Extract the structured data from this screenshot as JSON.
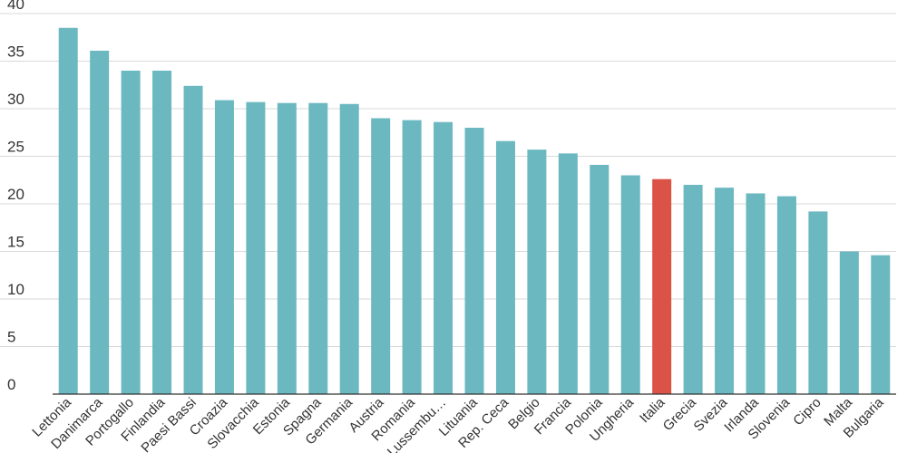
{
  "chart_data": {
    "type": "bar",
    "categories": [
      "Lettonia",
      "Danimarca",
      "Portogallo",
      "Finlandia",
      "Paesi Bassi",
      "Croazia",
      "Slovacchia",
      "Estonia",
      "Spagna",
      "Germania",
      "Austria",
      "Romania",
      "Lussemburgo",
      "Lituania",
      "Rep. Ceca",
      "Belgio",
      "Francia",
      "Polonia",
      "Ungheria",
      "Italia",
      "Grecia",
      "Svezia",
      "Irlanda",
      "Slovenia",
      "Cipro",
      "Malta",
      "Bulgaria"
    ],
    "category_labels_shown": [
      "Lettonia",
      "Danimarca",
      "Portogallo",
      "Finlandia",
      "Paesi Bassi",
      "Croazia",
      "Slovacchia",
      "Estonia",
      "Spagna",
      "Germania",
      "Austria",
      "Romania",
      "Lussembu…",
      "Lituania",
      "Rep. Ceca",
      "Belgio",
      "Francia",
      "Polonia",
      "Ungheria",
      "Italia",
      "Grecia",
      "Svezia",
      "Irlanda",
      "Slovenia",
      "Cipro",
      "Malta",
      "Bulgaria"
    ],
    "values": [
      38.5,
      36.1,
      34.0,
      34.0,
      32.4,
      30.9,
      30.7,
      30.6,
      30.6,
      30.5,
      29.0,
      28.8,
      28.6,
      28.0,
      26.6,
      25.7,
      25.3,
      24.1,
      23.0,
      22.6,
      22.0,
      21.7,
      21.1,
      20.8,
      19.2,
      15.0,
      14.6
    ],
    "highlight_category": "Italia",
    "colors": {
      "bar": "#6bb8c0",
      "highlight": "#db5247",
      "grid": "#d9d9d9",
      "axis": "#333333",
      "text": "#333333"
    },
    "yticks": [
      0,
      5,
      10,
      15,
      20,
      25,
      30,
      35,
      40
    ],
    "ylim": [
      0,
      40
    ],
    "grid": true,
    "title": "",
    "xlabel": "",
    "ylabel": ""
  }
}
